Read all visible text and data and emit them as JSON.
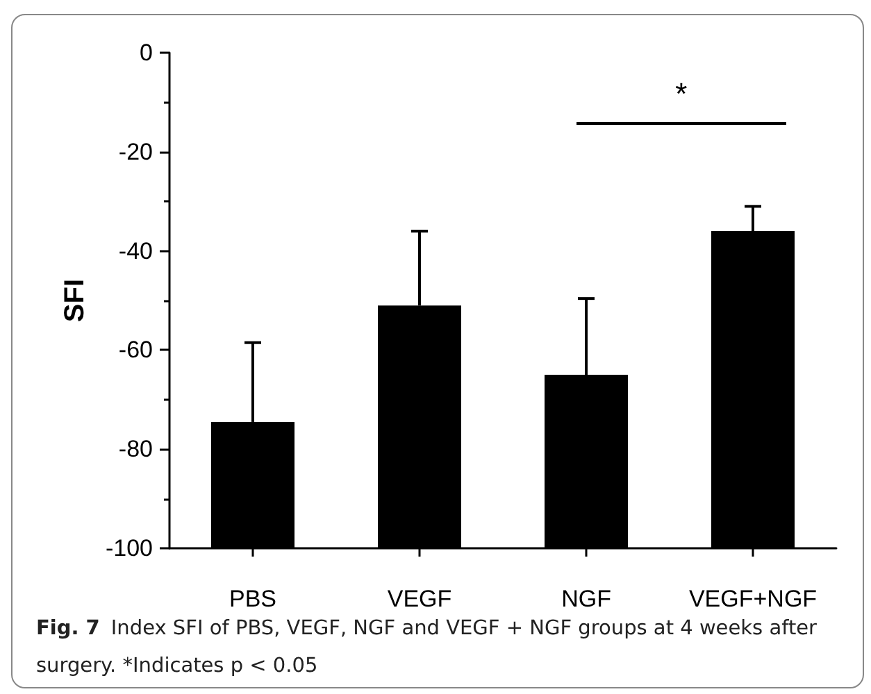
{
  "chart_data": {
    "type": "bar",
    "categories": [
      "PBS",
      "VEGF",
      "NGF",
      "VEGF+NGF"
    ],
    "values": [
      25.5,
      49,
      35,
      64
    ],
    "base": [
      -100,
      -100,
      -100,
      -100
    ],
    "errors": [
      [
        -74.5,
        -58.5
      ],
      [
        -51,
        -36
      ],
      [
        -65,
        -49.6
      ],
      [
        -36,
        -31
      ]
    ],
    "color": "#000000",
    "ylabel": "SFI",
    "ylim": [
      -100,
      0
    ],
    "yticks": [
      -100,
      -80,
      -60,
      -40,
      -20,
      0
    ],
    "grid": false,
    "legend": false,
    "annotations": [
      "*",
      "Fig. 7",
      "Index SFI of PBS, VEGF, NGF and VEGF + NGF groups at 4 weeks after surgery. *Indicates p < 0.05"
    ]
  }
}
